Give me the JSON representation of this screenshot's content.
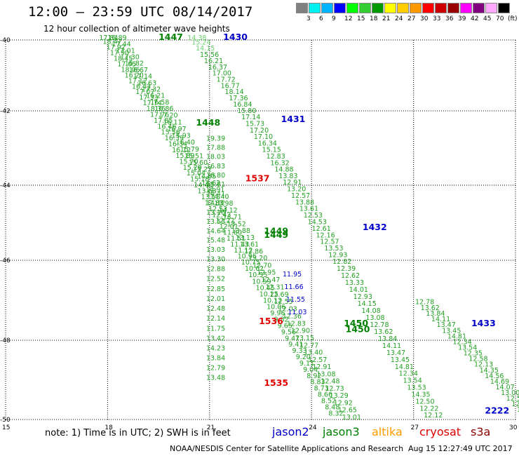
{
  "header": {
    "title": "12:00 — 23:59 UTC 08/14/2017",
    "subtitle": "12 hour collection of altimeter wave heights"
  },
  "scale": {
    "swatches": [
      {
        "color": "#808080",
        "label": ""
      },
      {
        "color": "#00f0f0",
        "label": "3"
      },
      {
        "color": "#00b4ff",
        "label": "6"
      },
      {
        "color": "#0000ff",
        "label": "9"
      },
      {
        "color": "#00ff00",
        "label": "12"
      },
      {
        "color": "#33cc33",
        "label": "15"
      },
      {
        "color": "#009900",
        "label": "18"
      },
      {
        "color": "#ffff00",
        "label": "21"
      },
      {
        "color": "#ffcc00",
        "label": "24"
      },
      {
        "color": "#ff9900",
        "label": "27"
      },
      {
        "color": "#ff0000",
        "label": "30"
      },
      {
        "color": "#cc0000",
        "label": "33"
      },
      {
        "color": "#990000",
        "label": "36"
      },
      {
        "color": "#ff00ff",
        "label": "39"
      },
      {
        "color": "#800080",
        "label": "42"
      },
      {
        "color": "#ffaaff",
        "label": "45"
      },
      {
        "color": "#000000",
        "label": "70"
      }
    ],
    "unit": "(ft)"
  },
  "axes": {
    "lon_ticks": [
      "15",
      "18",
      "21",
      "24",
      "27",
      "30"
    ],
    "lat_ticks": [
      "-40",
      "-42",
      "-44",
      "-46",
      "-48",
      "-50"
    ]
  },
  "colors": {
    "jason2": "#0000c8",
    "jason3": "#008000",
    "altika": "#ff9900",
    "cryosat": "#e00000",
    "s3a": "#8b0000",
    "track_value": "#22a022",
    "track_value_light": "#6fd06f"
  },
  "track_labels": [
    {
      "text": "1447",
      "lon": 19.5,
      "lat": -39.95,
      "sat": "jason3"
    },
    {
      "text": "1430",
      "lon": 21.4,
      "lat": -39.95,
      "sat": "jason2"
    },
    {
      "text": "1448",
      "lon": 20.6,
      "lat": -42.4,
      "sat": "jason3"
    },
    {
      "text": "1431",
      "lon": 23.1,
      "lat": -42.3,
      "sat": "jason2"
    },
    {
      "text": "1537",
      "lon": 22.05,
      "lat": -43.9,
      "sat": "cryosat"
    },
    {
      "text": "1449",
      "lon": 22.6,
      "lat": -45.3,
      "sat": "jason3"
    },
    {
      "text": "1449",
      "lon": 22.6,
      "lat": -45.4,
      "sat": "jason3"
    },
    {
      "text": "1432",
      "lon": 25.5,
      "lat": -45.2,
      "sat": "jason2"
    },
    {
      "text": "1536",
      "lon": 22.45,
      "lat": -47.6,
      "sat": "cryosat"
    },
    {
      "text": "1450",
      "lon": 24.95,
      "lat": -47.65,
      "sat": "jason3"
    },
    {
      "text": "1450",
      "lon": 25.0,
      "lat": -47.8,
      "sat": "jason3"
    },
    {
      "text": "1433",
      "lon": 28.7,
      "lat": -47.65,
      "sat": "jason2"
    },
    {
      "text": "1535",
      "lon": 22.6,
      "lat": -49.15,
      "sat": "cryosat"
    },
    {
      "text": "2222",
      "lon": 29.1,
      "lat": -49.85,
      "sat": "jason2"
    }
  ],
  "tracks": [
    {
      "id": "j3-left",
      "start": [
        17.75,
        -39.95
      ],
      "end": [
        24.5,
        -49.9
      ],
      "values": [
        "17.84",
        "18.47",
        "17.92",
        "17.90",
        "18.45",
        "17.05",
        "18.06",
        "16.20",
        "17.12",
        "16.43",
        "17.07",
        "17.33",
        "17.74",
        "18.36",
        "17.76",
        "17.85",
        "16.46",
        "15.56",
        "16.39",
        "16.34",
        "16.12",
        "15.89",
        "15.70",
        "15.29",
        "15.04",
        "15.18",
        "14.40",
        "13.63",
        "13.15",
        "12.83",
        "12.53",
        "12.42",
        "12.22",
        "12.01",
        "11.80",
        "11.51",
        "11.43",
        "11.12",
        "10.96",
        "10.75",
        "10.62",
        "10.55",
        "10.59",
        "10.45",
        "10.25",
        "10.12",
        "10.06",
        "9.96",
        "9.82",
        "9.65",
        "9.56",
        "9.47",
        "9.41",
        "9.33",
        "9.20",
        "9.11",
        "9.04",
        "8.92",
        "8.83",
        "8.73",
        "8.66",
        "8.52",
        "8.48",
        "8.32"
      ]
    },
    {
      "id": "j2-left",
      "start": [
        20.35,
        -39.95
      ],
      "end": [
        27.3,
        -49.95
      ],
      "values": [
        "14.38",
        "15.24",
        "14.15",
        "15.56",
        "16.21",
        "16.37",
        "17.00",
        "17.72",
        "16.77",
        "18.14",
        "17.36",
        "16.84",
        "15.80",
        "17.14",
        "15.73",
        "17.20",
        "17.10",
        "16.34",
        "15.15",
        "12.83",
        "16.32",
        "14.88",
        "13.83",
        "12.91",
        "13.20",
        "12.57",
        "13.88",
        "13.61",
        "12.53",
        "14.53",
        "12.61",
        "12.16",
        "12.57",
        "13.53",
        "12.93",
        "12.82",
        "12.39",
        "12.62",
        "13.33",
        "14.01",
        "12.93",
        "14.15",
        "14.08",
        "13.08",
        "12.78",
        "13.62",
        "13.84",
        "14.11",
        "13.47",
        "13.45",
        "14.81",
        "12.34",
        "13.54",
        "13.53",
        "14.35",
        "12.50",
        "12.22",
        "12.12"
      ]
    },
    {
      "id": "j3-right",
      "start": [
        18.0,
        -40.0
      ],
      "end": [
        24.9,
        -50.0
      ],
      "values": [
        "16.89",
        "17.44",
        "17.01",
        "17.30",
        "16.82",
        "16.67",
        "17.14",
        "16.63",
        "17.32",
        "16.21",
        "16.58",
        "16.86",
        "17.20",
        "16.11",
        "16.97",
        "15.93",
        "16.40",
        "15.79",
        "15.51",
        "15.60",
        "15.22",
        "14.85",
        "14.62",
        "14.91",
        "14.40",
        "13.98",
        "14.12",
        "13.71",
        "13.52",
        "13.88",
        "13.13",
        "13.61",
        "12.86",
        "13.20",
        "12.70",
        "12.95",
        "12.47",
        "12.31",
        "12.69",
        "12.55",
        "12.03",
        "12.36",
        "12.83",
        "12.90",
        "13.15",
        "12.77",
        "13.40",
        "12.57",
        "12.91",
        "13.08",
        "12.48",
        "12.73",
        "13.29",
        "12.92",
        "12.65",
        "13.01"
      ]
    },
    {
      "id": "c-mid",
      "start": [
        20.9,
        -42.8
      ],
      "end": [
        20.9,
        -49.0
      ],
      "values": [
        "19.39",
        "17.88",
        "18.03",
        "16.83",
        "16.80",
        "15.81",
        "14.41",
        "14.12",
        "13.16",
        "13.53",
        "14.64",
        "15.48",
        "13.03",
        "13.30",
        "12.88",
        "12.52",
        "12.85",
        "12.01",
        "12.48",
        "12.14",
        "11.75",
        "13.42",
        "14.23",
        "13.84",
        "12.79",
        "13.48"
      ]
    },
    {
      "id": "j2-right",
      "start": [
        27.05,
        -47.1
      ],
      "end": [
        30.2,
        -49.95
      ],
      "values": [
        "12.78",
        "13.62",
        "13.84",
        "14.11",
        "13.47",
        "13.45",
        "14.81",
        "12.34",
        "13.54",
        "12.35",
        "12.58",
        "12.13",
        "14.35",
        "14.56",
        "14.69",
        "14.07",
        "13.00",
        "12.57",
        "12.15",
        "13.27",
        "12.50"
      ]
    },
    {
      "id": "j2-values-cluster",
      "start": [
        23.15,
        -46.4
      ],
      "end": [
        23.3,
        -47.35
      ],
      "values": [
        "11.95",
        "11.66",
        "11.55",
        "11.03"
      ]
    }
  ],
  "footer": {
    "note": "note: 1) Time is in UTC; 2) SWH is in feet",
    "satellites": [
      {
        "key": "jason2",
        "label": "jason2"
      },
      {
        "key": "jason3",
        "label": "jason3"
      },
      {
        "key": "altika",
        "label": "altika"
      },
      {
        "key": "cryosat",
        "label": "cryosat"
      },
      {
        "key": "s3a",
        "label": "s3a"
      }
    ],
    "credit": "NOAA/NESDIS Center for Satellite Applications and Research",
    "timestamp": "Aug 15 12:27:49 UTC 2017"
  }
}
